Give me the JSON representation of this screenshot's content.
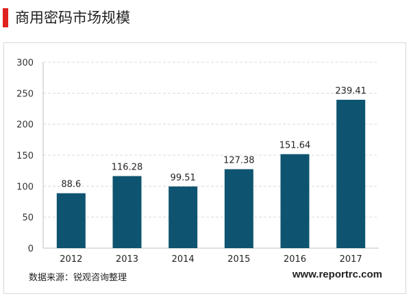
{
  "title": "商用密码市场规模",
  "source": "数据来源：锐观咨询整理",
  "website": "www.reportrc.com",
  "colors": {
    "bar": "#0e5470",
    "accent": "#e0211f"
  },
  "chart_data": {
    "type": "bar",
    "title": "",
    "xlabel": "",
    "ylabel": "",
    "ylim": [
      0,
      300
    ],
    "yticks": [
      0,
      50,
      100,
      150,
      200,
      250,
      300
    ],
    "grid": true,
    "categories": [
      "2012",
      "2013",
      "2014",
      "2015",
      "2016",
      "2017"
    ],
    "values": [
      88.6,
      116.28,
      99.51,
      127.38,
      151.64,
      239.41
    ],
    "value_labels": [
      "88.6",
      "116.28",
      "99.51",
      "127.38",
      "151.64",
      "239.41"
    ]
  }
}
